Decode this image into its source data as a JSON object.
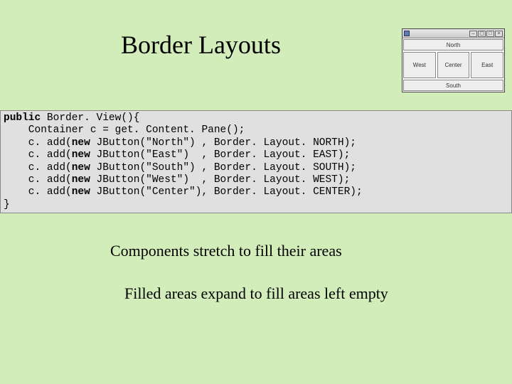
{
  "title": "Border Layouts",
  "code": {
    "k_public": "public",
    "cls_method": " Border. View(){",
    "l2a": "    Container c = get. Content. Pane();",
    "l3": "    c. add(",
    "k_new": "new",
    "l3b": " JButton(\"North\") , Border. Layout. NORTH);",
    "l4b": " JButton(\"East\")  , Border. Layout. EAST);",
    "l5b": " JButton(\"South\") , Border. Layout. SOUTH);",
    "l6b": " JButton(\"West\")  , Border. Layout. WEST);",
    "l7b": " JButton(\"Center\"), Border. Layout. CENTER);",
    "close": "}"
  },
  "body1": "Components stretch to fill their areas",
  "body2": "Filled areas expand to fill areas left empty",
  "preview": {
    "north": "North",
    "south": "South",
    "west": "West",
    "center": "Center",
    "east": "East",
    "min": "–",
    "max": "□",
    "full": "▢",
    "close": "×"
  },
  "colors": {
    "background": "#d2edba",
    "code_bg": "#e0e0e0"
  }
}
